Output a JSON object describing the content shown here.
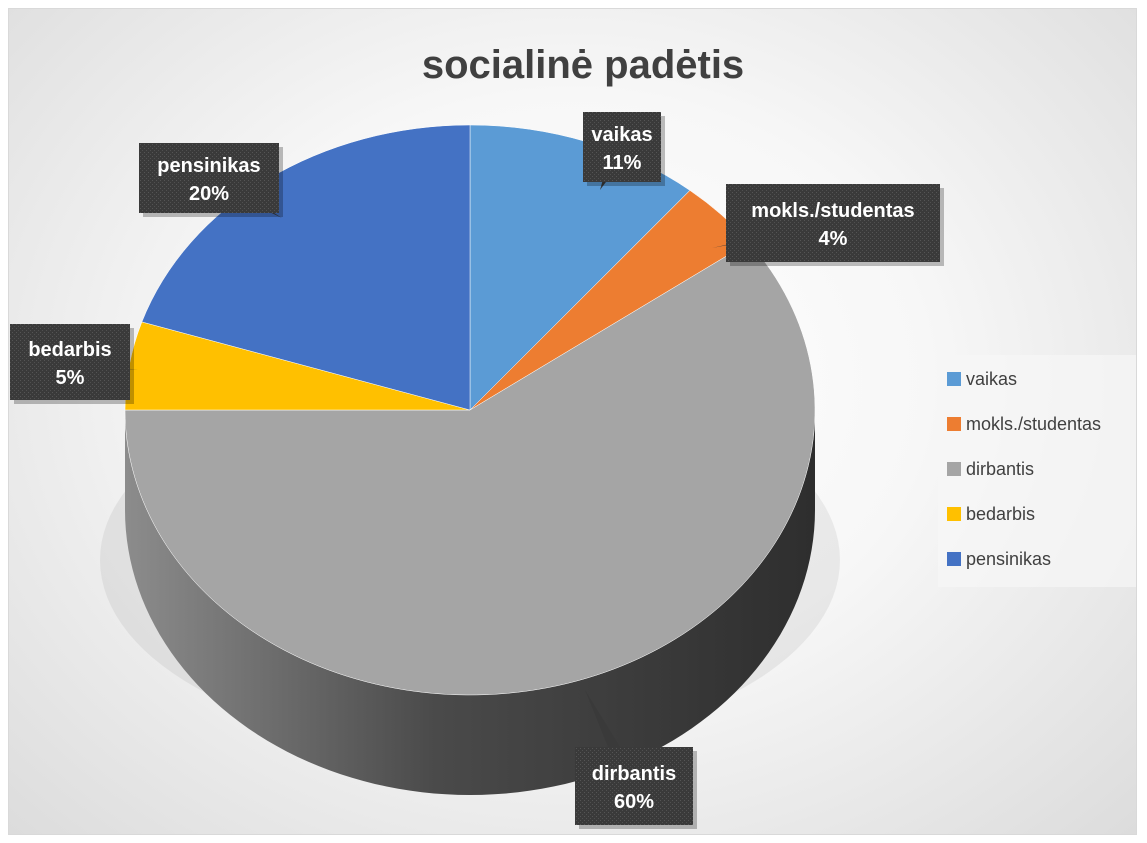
{
  "chart_data": {
    "type": "pie",
    "title": "socialinė padėtis",
    "categories": [
      "vaikas",
      "mokls./studentas",
      "dirbantis",
      "bedarbis",
      "pensinikas"
    ],
    "values": [
      11,
      4,
      60,
      5,
      20
    ],
    "value_labels": [
      "11%",
      "4%",
      "60%",
      "5%",
      "20%"
    ],
    "colors": [
      "#5b9bd5",
      "#ed7d31",
      "#a5a5a5",
      "#ffc000",
      "#4472c4"
    ],
    "legend_position": "right",
    "style": "3d"
  }
}
